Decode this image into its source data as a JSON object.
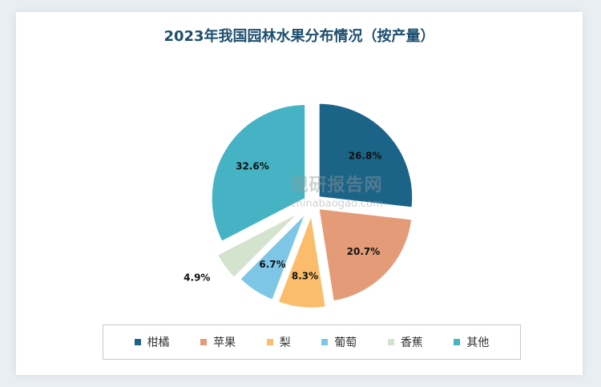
{
  "chart_data": {
    "type": "pie",
    "title": "2023年我国园林水果分布情况（按产量）",
    "categories": [
      "柑橘",
      "苹果",
      "梨",
      "葡萄",
      "香蕉",
      "其他"
    ],
    "values": [
      26.8,
      20.7,
      8.3,
      6.7,
      4.9,
      32.6
    ],
    "labels": [
      "26.8%",
      "20.7%",
      "8.3%",
      "6.7%",
      "4.9%",
      "32.6%"
    ],
    "colors": [
      "#1b6488",
      "#e49b78",
      "#fbbd6b",
      "#7ec6e6",
      "#d3e3ce",
      "#45b3c3"
    ],
    "legend_position": "bottom"
  },
  "watermark": {
    "line1": "观研报告网",
    "line2": "chinabaogao.com"
  }
}
